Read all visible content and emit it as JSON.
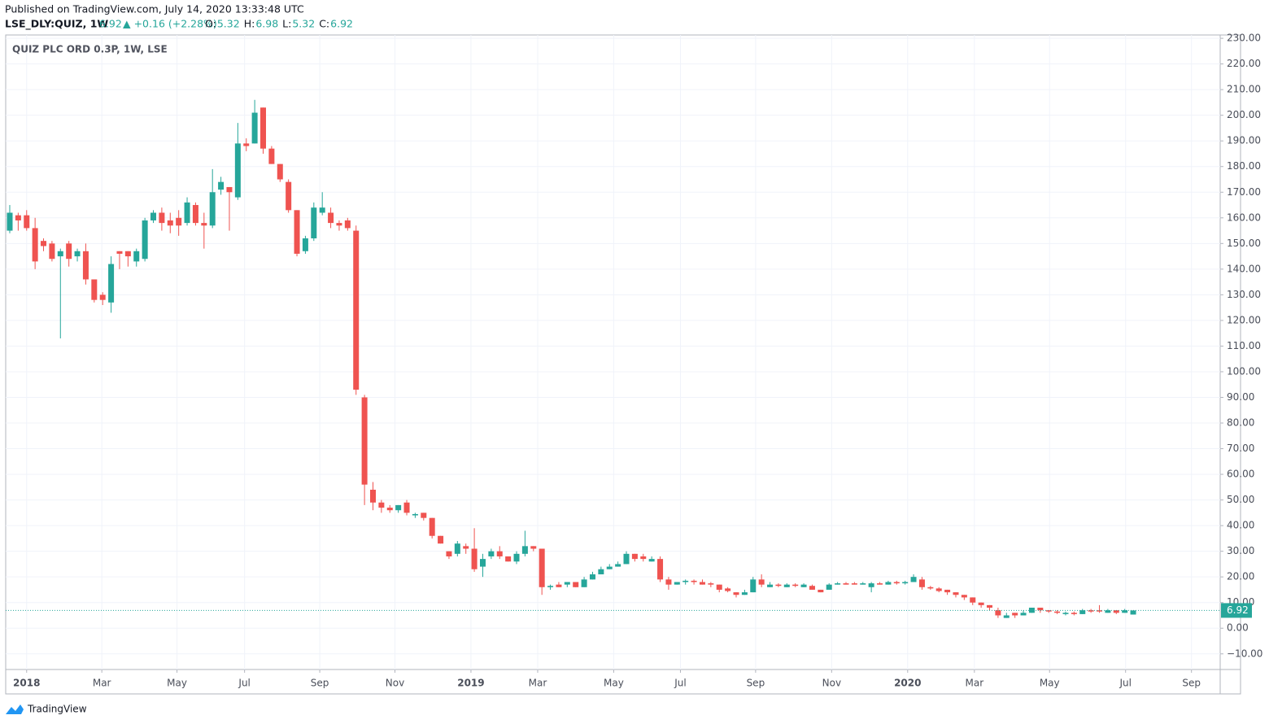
{
  "header": {
    "published": "Published on TradingView.com, July 14, 2020 13:33:48 UTC",
    "symbol": "LSE_DLY:QUIZ, 1W",
    "last": "6.92",
    "change": "▲ +0.16 (+2.28%)",
    "fields": [
      {
        "label": "O:",
        "value": "5.32"
      },
      {
        "label": "H:",
        "value": "6.98"
      },
      {
        "label": "L:",
        "value": "5.32"
      },
      {
        "label": "C:",
        "value": "6.92"
      }
    ]
  },
  "logo": "TradingView",
  "chart_data": {
    "type": "candlestick",
    "title": "QUIZ PLC ORD 0.3P, 1W, LSE",
    "up_color": "#26a69a",
    "down_color": "#ef5350",
    "grid": true,
    "last_price": 6.92,
    "last_price_label": "6.92",
    "xlim": [
      -0.48,
      143.3
    ],
    "xticks": [
      {
        "value": 2.0,
        "label": "2018"
      },
      {
        "value": 10.9,
        "label": "Mar"
      },
      {
        "value": 19.8,
        "label": "May"
      },
      {
        "value": 27.8,
        "label": "Jul"
      },
      {
        "value": 36.7,
        "label": "Sep"
      },
      {
        "value": 45.6,
        "label": "Nov"
      },
      {
        "value": 54.6,
        "label": "2019"
      },
      {
        "value": 62.5,
        "label": "Mar"
      },
      {
        "value": 71.5,
        "label": "May"
      },
      {
        "value": 79.4,
        "label": "Jul"
      },
      {
        "value": 88.3,
        "label": "Sep"
      },
      {
        "value": 97.3,
        "label": "Nov"
      },
      {
        "value": 106.3,
        "label": "2020"
      },
      {
        "value": 114.2,
        "label": "Mar"
      },
      {
        "value": 123.1,
        "label": "May"
      },
      {
        "value": 132.1,
        "label": "Jul"
      },
      {
        "value": 139.9,
        "label": "Sep"
      }
    ],
    "ylim": [
      -16.1,
      231.3
    ],
    "yticks": [
      {
        "value": -10,
        "label": "−10.00"
      },
      {
        "value": 0,
        "label": "0.00"
      },
      {
        "value": 10,
        "label": "10.00"
      },
      {
        "value": 20,
        "label": "20.00"
      },
      {
        "value": 30,
        "label": "30.00"
      },
      {
        "value": 40,
        "label": "40.00"
      },
      {
        "value": 50,
        "label": "50.00"
      },
      {
        "value": 60,
        "label": "60.00"
      },
      {
        "value": 70,
        "label": "70.00"
      },
      {
        "value": 80,
        "label": "80.00"
      },
      {
        "value": 90,
        "label": "90.00"
      },
      {
        "value": 100,
        "label": "100.00"
      },
      {
        "value": 110,
        "label": "110.00"
      },
      {
        "value": 120,
        "label": "120.00"
      },
      {
        "value": 130,
        "label": "130.00"
      },
      {
        "value": 140,
        "label": "140.00"
      },
      {
        "value": 150,
        "label": "150.00"
      },
      {
        "value": 160,
        "label": "160.00"
      },
      {
        "value": 170,
        "label": "170.00"
      },
      {
        "value": 180,
        "label": "180.00"
      },
      {
        "value": 190,
        "label": "190.00"
      },
      {
        "value": 200,
        "label": "200.00"
      },
      {
        "value": 210,
        "label": "210.00"
      },
      {
        "value": 220,
        "label": "220.00"
      },
      {
        "value": 230,
        "label": "230.00"
      }
    ],
    "open": [
      155,
      161,
      161,
      156,
      151,
      150,
      145,
      150,
      145,
      147,
      136,
      130,
      127,
      147,
      147,
      143,
      144,
      159,
      162,
      159,
      160,
      158,
      165,
      158,
      157,
      171,
      172,
      168,
      189,
      189,
      203,
      187,
      181,
      174,
      163,
      147,
      152,
      162,
      162,
      158,
      159,
      155,
      90,
      54,
      49,
      47,
      46,
      49,
      44,
      45,
      43,
      36,
      30,
      29,
      32,
      31,
      24,
      28,
      30,
      28,
      26,
      29,
      32,
      31,
      16,
      17,
      17,
      18,
      16,
      19,
      21,
      23,
      24,
      25,
      29,
      28,
      26,
      27,
      19,
      17,
      18,
      18.5,
      18,
      17.5,
      17,
      15.5,
      14,
      13,
      14,
      19,
      16,
      17,
      16,
      17,
      16,
      16.5,
      15,
      15,
      17,
      17.5,
      17.5,
      17,
      16,
      17.5,
      17,
      18,
      17.5,
      18,
      19,
      16,
      15.5,
      15,
      14,
      13,
      12,
      10,
      9,
      7,
      4,
      6,
      5,
      6,
      8,
      7,
      6.5,
      5.5,
      6,
      5.5,
      7,
      7,
      6,
      7,
      6,
      5.32
    ],
    "high": [
      165,
      162,
      163,
      160,
      152,
      151,
      148,
      151,
      148,
      150,
      136,
      131,
      145,
      147,
      147,
      148,
      160,
      163,
      164,
      162,
      163,
      168,
      166,
      162,
      179,
      176,
      172,
      197,
      191,
      206,
      203,
      188,
      181,
      175,
      163,
      153,
      166,
      170,
      164,
      159,
      160,
      157,
      91,
      57,
      50,
      48,
      48,
      50,
      45,
      45,
      43,
      36,
      30,
      34,
      33,
      39,
      29,
      31,
      32,
      28,
      30,
      38,
      32,
      31,
      17,
      18,
      18,
      18,
      20,
      22,
      24,
      25,
      26,
      30,
      29,
      29,
      28,
      28,
      20,
      18,
      19,
      19,
      19,
      18,
      17,
      16,
      14,
      15,
      20,
      21,
      18,
      17.5,
      17.5,
      17.5,
      17.5,
      17,
      15,
      17.5,
      18,
      18,
      18,
      18,
      18,
      18,
      18.5,
      18.5,
      18.5,
      21,
      20,
      16.5,
      16,
      15,
      14,
      13,
      12,
      10,
      9,
      8,
      6,
      6,
      7,
      8,
      8,
      7,
      7,
      6.5,
      6.5,
      7.5,
      7.5,
      9,
      7.5,
      7,
      7.5,
      6.98
    ],
    "low": [
      154,
      155,
      155,
      140,
      147,
      143,
      113,
      141,
      143,
      134,
      127,
      126,
      123,
      140,
      141,
      141,
      143,
      158,
      155,
      154,
      153,
      157,
      157,
      148,
      156,
      169,
      155,
      167,
      186,
      189,
      185,
      181,
      174,
      162,
      145,
      146,
      151,
      161,
      156,
      155,
      155,
      91,
      48,
      46,
      45,
      45,
      45,
      44,
      43,
      42,
      35,
      33,
      27,
      28,
      29,
      22,
      20,
      27,
      27,
      26,
      25,
      28,
      30,
      13,
      15,
      16,
      16,
      16,
      16,
      19,
      21,
      23,
      24,
      25,
      26,
      26,
      26,
      18,
      15,
      17,
      17,
      17,
      17,
      16,
      14,
      14,
      12,
      13,
      14,
      16,
      16,
      16,
      16,
      16,
      16,
      15,
      14,
      15,
      17,
      17,
      17,
      17,
      14,
      17,
      17,
      17,
      17,
      18,
      15,
      15,
      14,
      13,
      12,
      11,
      9,
      8,
      7,
      4,
      4,
      4,
      5,
      6,
      6,
      6,
      5.5,
      5,
      5,
      5.5,
      6,
      6,
      6,
      5.5,
      6,
      5.32
    ],
    "close": [
      162,
      159,
      156,
      143,
      149,
      144,
      147,
      144,
      147,
      136,
      128,
      128,
      142,
      146,
      145,
      147,
      159,
      162,
      158,
      157,
      157,
      166,
      158,
      157,
      170,
      174,
      170,
      189,
      188,
      201,
      187,
      181,
      175,
      163,
      146,
      152,
      164,
      164,
      158,
      157,
      156,
      93,
      56,
      49,
      47,
      46,
      48,
      45,
      44.5,
      43,
      36,
      33,
      28,
      33,
      31,
      23,
      27,
      30,
      28,
      26,
      29,
      32,
      31,
      16,
      16.5,
      16,
      18,
      16,
      19,
      21,
      23,
      24,
      25,
      29,
      27,
      27,
      27,
      19,
      17,
      18,
      18.5,
      18,
      17,
      17,
      15,
      14.5,
      13,
      14,
      19,
      17,
      17,
      16.5,
      17,
      16.5,
      17,
      15,
      14,
      17,
      17.5,
      17,
      17,
      17.5,
      17.5,
      17,
      18,
      17.5,
      18,
      20,
      16,
      15.5,
      14.5,
      14,
      13,
      12,
      10,
      9,
      8,
      5,
      5,
      5,
      6,
      8,
      7,
      6.5,
      6,
      6,
      5.5,
      7,
      6.5,
      6.5,
      7,
      6,
      7,
      6.92
    ]
  }
}
